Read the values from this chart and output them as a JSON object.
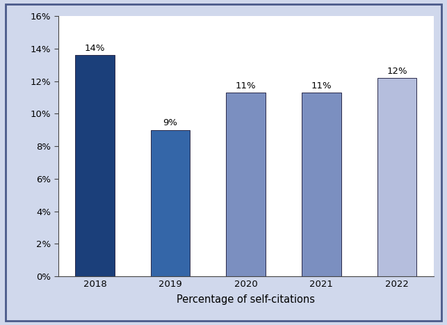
{
  "categories": [
    "2018",
    "2019",
    "2020",
    "2021",
    "2022"
  ],
  "values": [
    0.136,
    0.09,
    0.113,
    0.113,
    0.122
  ],
  "labels": [
    "14%",
    "9%",
    "11%",
    "11%",
    "12%"
  ],
  "bar_colors": [
    "#1b3f7a",
    "#3466a8",
    "#7b8fc0",
    "#7b8fc0",
    "#b5bedd"
  ],
  "bar_edgecolor": "#2a2a4a",
  "xlabel": "Percentage of self-citations",
  "ylim": [
    0,
    0.16
  ],
  "yticks": [
    0.0,
    0.02,
    0.04,
    0.06,
    0.08,
    0.1,
    0.12,
    0.14,
    0.16
  ],
  "ytick_labels": [
    "0%",
    "2%",
    "4%",
    "6%",
    "8%",
    "10%",
    "12%",
    "14%",
    "16%"
  ],
  "background_outer": "#d0d8ec",
  "background_inner": "#ffffff",
  "label_fontsize": 9.5,
  "xlabel_fontsize": 10.5,
  "tick_fontsize": 9.5,
  "border_color": "#4a5a8a",
  "border_linewidth": 2.0,
  "spine_color": "#444444",
  "bar_width": 0.52
}
